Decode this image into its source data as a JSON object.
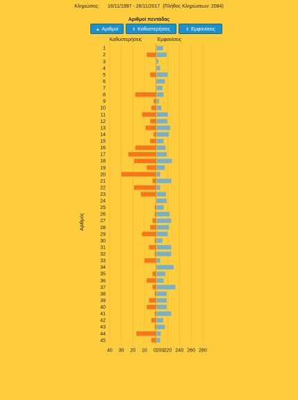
{
  "header": {
    "draws_label": "Κληρώσεις:",
    "range": "16/11/1997 - 26/11/2017",
    "count_note": "(Πλήθος Κληρώσεων: 2084)"
  },
  "subtitle": "Αριθμοί πεντάδας",
  "buttons": [
    {
      "label": "Αριθμοί",
      "icon": "▲",
      "icon_name": "sort-up-icon"
    },
    {
      "label": "Καθυστερήσεις",
      "icon": "⇕",
      "icon_name": "sort-icon"
    },
    {
      "label": "Εμφανίσεις",
      "icon": "⇕",
      "icon_name": "sort-icon"
    }
  ],
  "colors": {
    "delay": "#f8751b",
    "appear": "#78b0c9",
    "background": "#fecd3d",
    "button": "#1f8fc6"
  },
  "chart_data": {
    "type": "bar",
    "ylabel": "Αριθμός",
    "left_title": "Καθυστερήσεις",
    "right_title": "Εμφανίσεις",
    "categories": [
      "1",
      "2",
      "3",
      "4",
      "5",
      "6",
      "7",
      "8",
      "9",
      "10",
      "11",
      "12",
      "13",
      "14",
      "15",
      "16",
      "17",
      "18",
      "19",
      "20",
      "21",
      "22",
      "23",
      "24",
      "25",
      "26",
      "27",
      "28",
      "29",
      "30",
      "31",
      "32",
      "33",
      "34",
      "35",
      "36",
      "37",
      "38",
      "39",
      "40",
      "41",
      "42",
      "43",
      "44",
      "45"
    ],
    "left_axis": {
      "ticks": [
        40,
        30,
        20,
        10,
        0
      ],
      "max": 40
    },
    "right_axis": {
      "ticks": [
        200,
        220,
        240,
        260,
        280
      ],
      "min": 200,
      "max": 280
    },
    "series": [
      {
        "name": "Καθυστερήσεις",
        "values": [
          0,
          8,
          0,
          0,
          5,
          0,
          0,
          18,
          2,
          4,
          12,
          5,
          9,
          2,
          5,
          18,
          24,
          19,
          8,
          30,
          3,
          19,
          13,
          0,
          1,
          1,
          3,
          5,
          12,
          1,
          6,
          1,
          10,
          0,
          3,
          8,
          3,
          1,
          6,
          8,
          1,
          4,
          1,
          17,
          4
        ]
      },
      {
        "name": "Εμφανίσεις",
        "values": [
          211,
          217,
          203,
          206,
          219,
          214,
          210,
          212,
          204,
          208,
          219,
          218,
          223,
          221,
          212,
          215,
          217,
          226,
          214,
          206,
          225,
          206,
          216,
          217,
          212,
          222,
          225,
          221,
          219,
          210,
          225,
          225,
          206,
          229,
          215,
          212,
          232,
          217,
          217,
          217,
          225,
          211,
          214,
          207,
          206
        ]
      }
    ]
  }
}
